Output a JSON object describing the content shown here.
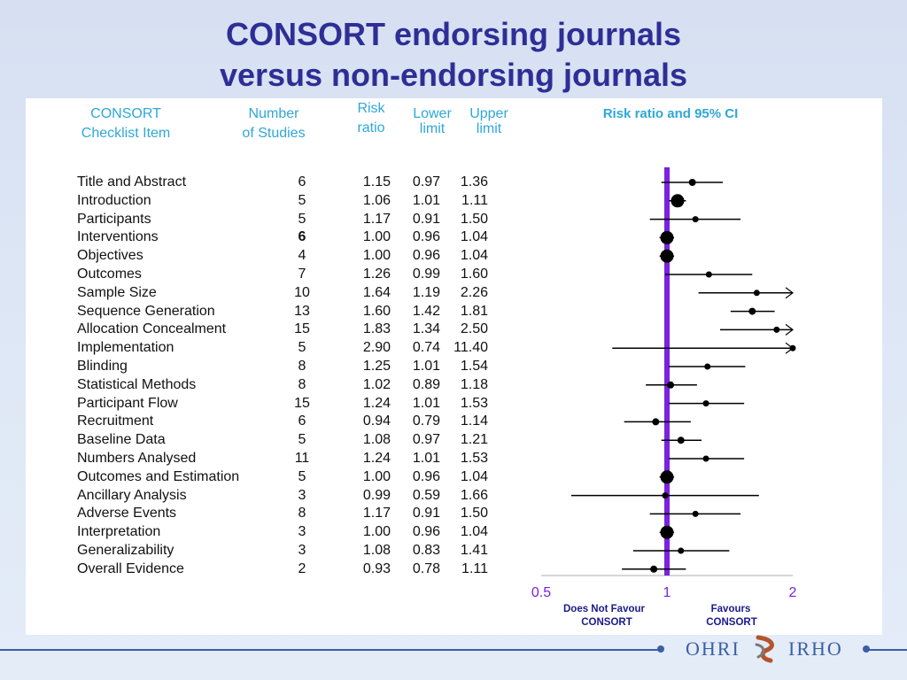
{
  "title_line1": "CONSORT endorsing journals",
  "title_line2": "versus non-endorsing journals",
  "headers": {
    "item_l1": "CONSORT",
    "item_l2": "Checklist Item",
    "n_l1": "Number",
    "n_l2": "of Studies",
    "rr_l1": "Risk",
    "rr_l2": "ratio",
    "lower_l1": "Lower",
    "lower_l2": "limit",
    "upper_l1": "Upper",
    "upper_l2": "limit",
    "plot": "Risk ratio and 95% CI"
  },
  "footer": {
    "left_l1": "Does Not Favour",
    "left_l2": "CONSORT",
    "right_l1": "Favours",
    "right_l2": "CONSORT",
    "logo_left": "OHRI",
    "logo_right": "IRHO"
  },
  "colors": {
    "title": "#2e2e96",
    "header": "#2fa7d8",
    "null_line": "#7a22e0",
    "axis_labels": "#7a22e0",
    "footer_text": "#1a1a8a"
  },
  "chart_data": {
    "type": "forest",
    "title": "Risk ratio and 95% CI",
    "x_scale": "log",
    "xlim": [
      0.5,
      2
    ],
    "x_ticks": [
      "0.5",
      "1",
      "2"
    ],
    "null_value": 1,
    "rows": [
      {
        "item": "Title and Abstract",
        "n": "6",
        "rr": "1.15",
        "lower": "0.97",
        "upper": "1.36"
      },
      {
        "item": "Introduction",
        "n": "5",
        "rr": "1.06",
        "lower": "1.01",
        "upper": "1.11"
      },
      {
        "item": "Participants",
        "n": "5",
        "rr": "1.17",
        "lower": "0.91",
        "upper": "1.50"
      },
      {
        "item": "Interventions",
        "n": "6",
        "rr": "1.00",
        "lower": "0.96",
        "upper": "1.04",
        "bold_n": true
      },
      {
        "item": "Objectives",
        "n": "4",
        "rr": "1.00",
        "lower": "0.96",
        "upper": "1.04"
      },
      {
        "item": "Outcomes",
        "n": "7",
        "rr": "1.26",
        "lower": "0.99",
        "upper": "1.60"
      },
      {
        "item": "Sample Size",
        "n": "10",
        "rr": "1.64",
        "lower": "1.19",
        "upper": "2.26"
      },
      {
        "item": "Sequence Generation",
        "n": "13",
        "rr": "1.60",
        "lower": "1.42",
        "upper": "1.81"
      },
      {
        "item": "Allocation Concealment",
        "n": "15",
        "rr": "1.83",
        "lower": "1.34",
        "upper": "2.50"
      },
      {
        "item": "Implementation",
        "n": "5",
        "rr": "2.90",
        "lower": "0.74",
        "upper": "11.40"
      },
      {
        "item": "Blinding",
        "n": "8",
        "rr": "1.25",
        "lower": "1.01",
        "upper": "1.54"
      },
      {
        "item": "Statistical Methods",
        "n": "8",
        "rr": "1.02",
        "lower": "0.89",
        "upper": "1.18"
      },
      {
        "item": "Participant Flow",
        "n": "15",
        "rr": "1.24",
        "lower": "1.01",
        "upper": "1.53"
      },
      {
        "item": "Recruitment",
        "n": "6",
        "rr": "0.94",
        "lower": "0.79",
        "upper": "1.14"
      },
      {
        "item": "Baseline Data",
        "n": "5",
        "rr": "1.08",
        "lower": "0.97",
        "upper": "1.21"
      },
      {
        "item": "Numbers Analysed",
        "n": "11",
        "rr": "1.24",
        "lower": "1.01",
        "upper": "1.53"
      },
      {
        "item": "Outcomes and Estimation",
        "n": "5",
        "rr": "1.00",
        "lower": "0.96",
        "upper": "1.04"
      },
      {
        "item": "Ancillary Analysis",
        "n": "3",
        "rr": "0.99",
        "lower": "0.59",
        "upper": "1.66"
      },
      {
        "item": "Adverse Events",
        "n": "8",
        "rr": "1.17",
        "lower": "0.91",
        "upper": "1.50"
      },
      {
        "item": "Interpretation",
        "n": "3",
        "rr": "1.00",
        "lower": "0.96",
        "upper": "1.04"
      },
      {
        "item": "Generalizability",
        "n": "3",
        "rr": "1.08",
        "lower": "0.83",
        "upper": "1.41"
      },
      {
        "item": "Overall Evidence",
        "n": "2",
        "rr": "0.93",
        "lower": "0.78",
        "upper": "1.11"
      }
    ]
  }
}
